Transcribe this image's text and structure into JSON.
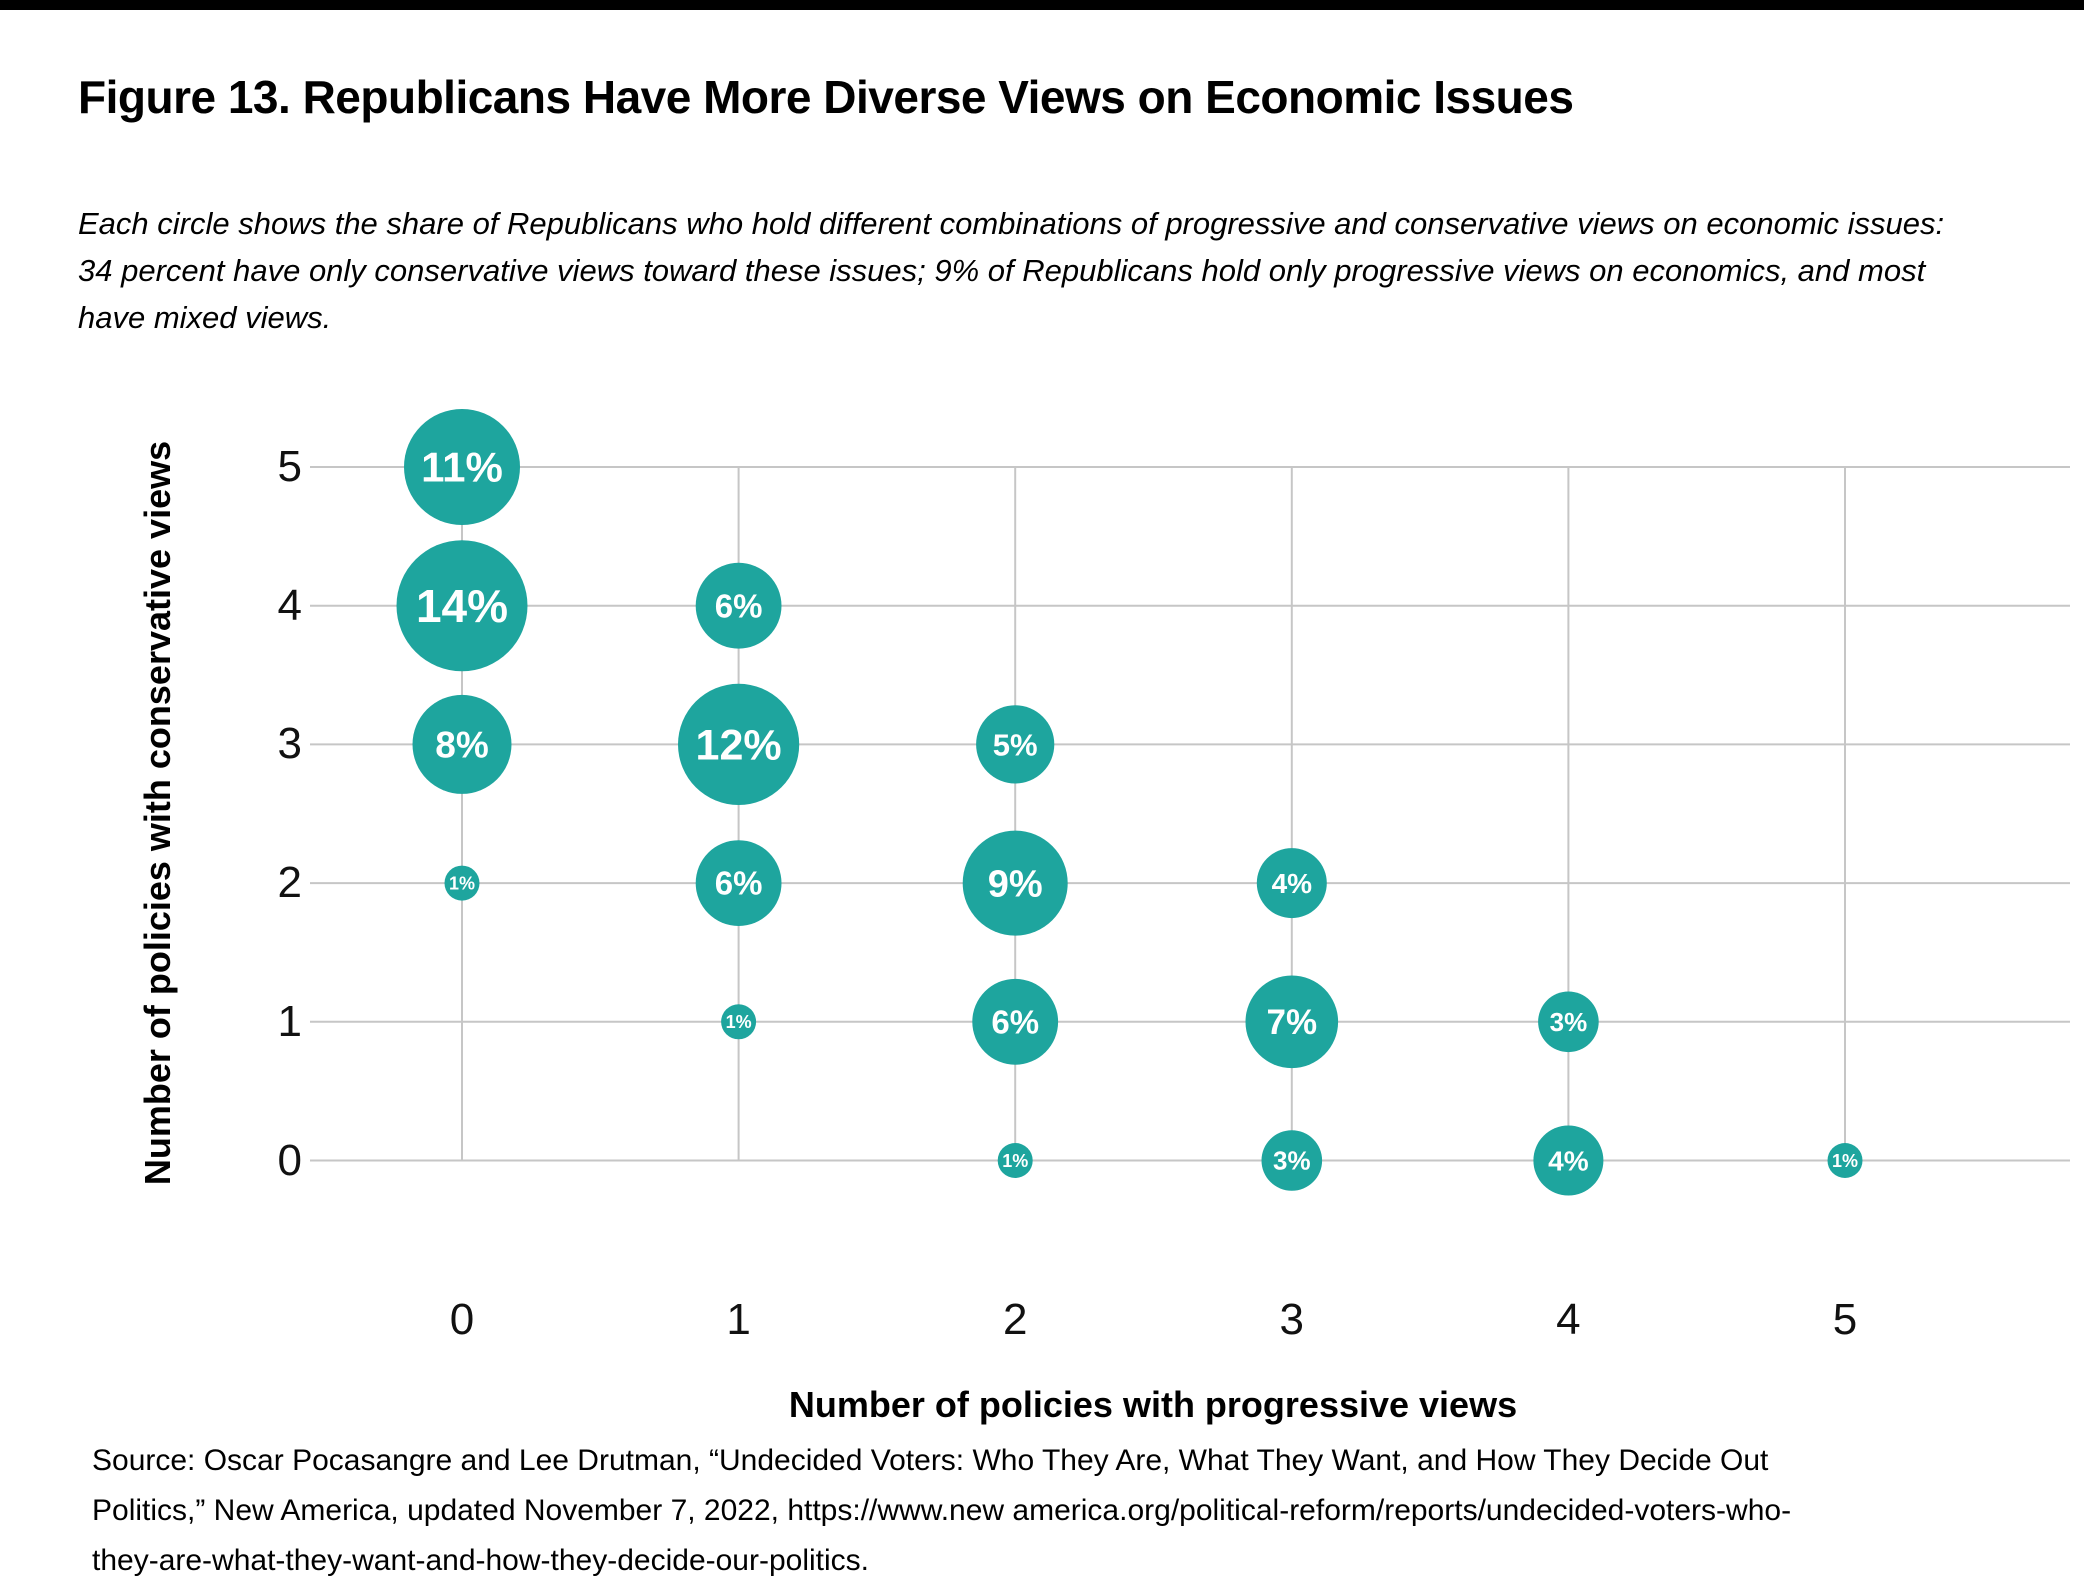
{
  "page": {
    "top_bar_color": "#000000",
    "title": "Figure 13. Republicans Have More Diverse Views on Economic Issues",
    "subtitle": "Each circle shows the share of Republicans who hold different combinations of progressive and conservative views on economic issues: 34 percent have only conservative views toward these issues; 9% of Republicans hold only progressive views on economics, and most have mixed views.",
    "source_note": "Source: Oscar Pocasangre and Lee Drutman, “Undecided Voters: Who They Are, What They Want, and How They Decide Out Politics,” New America, updated November 7, 2022, https://www.new america.org/political-reform/reports/undecided-voters-who-they-are-what-they-want-and-how-they-decide-our-politics."
  },
  "chart_data": {
    "type": "scatter",
    "subtype": "bubble",
    "title": "Figure 13. Republicans Have More Diverse Views on Economic Issues",
    "xlabel": "Number of policies with progressive views",
    "ylabel": "Number of policies with conservative views",
    "x_ticks": [
      "0",
      "1",
      "2",
      "3",
      "4",
      "5"
    ],
    "y_ticks": [
      "0",
      "1",
      "2",
      "3",
      "4",
      "5"
    ],
    "xlim": [
      0,
      5
    ],
    "ylim": [
      0,
      5
    ],
    "grid": true,
    "legend": "none",
    "bubble_color": "#1EA59E",
    "gridline_color": "#C6C6C6",
    "label_color": "#FFFFFF",
    "size_encoding": "circle area proportional to percent of Republicans",
    "points": [
      {
        "x": 0,
        "y": 5,
        "value": 11,
        "label": "11%"
      },
      {
        "x": 0,
        "y": 4,
        "value": 14,
        "label": "14%"
      },
      {
        "x": 0,
        "y": 3,
        "value": 8,
        "label": "8%"
      },
      {
        "x": 0,
        "y": 2,
        "value": 1,
        "label": "1%"
      },
      {
        "x": 1,
        "y": 4,
        "value": 6,
        "label": "6%"
      },
      {
        "x": 1,
        "y": 3,
        "value": 12,
        "label": "12%"
      },
      {
        "x": 1,
        "y": 2,
        "value": 6,
        "label": "6%"
      },
      {
        "x": 1,
        "y": 1,
        "value": 1,
        "label": "1%"
      },
      {
        "x": 2,
        "y": 3,
        "value": 5,
        "label": "5%"
      },
      {
        "x": 2,
        "y": 2,
        "value": 9,
        "label": "9%"
      },
      {
        "x": 2,
        "y": 1,
        "value": 6,
        "label": "6%"
      },
      {
        "x": 2,
        "y": 0,
        "value": 1,
        "label": "1%"
      },
      {
        "x": 3,
        "y": 2,
        "value": 4,
        "label": "4%"
      },
      {
        "x": 3,
        "y": 1,
        "value": 7,
        "label": "7%"
      },
      {
        "x": 3,
        "y": 0,
        "value": 3,
        "label": "3%"
      },
      {
        "x": 4,
        "y": 1,
        "value": 3,
        "label": "3%"
      },
      {
        "x": 4,
        "y": 0,
        "value": 4,
        "label": "4%"
      },
      {
        "x": 5,
        "y": 0,
        "value": 1,
        "label": "1%"
      }
    ]
  }
}
